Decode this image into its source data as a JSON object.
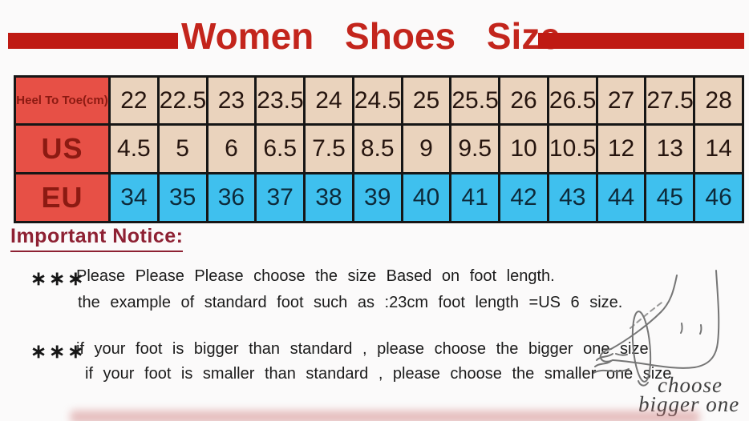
{
  "title": "Women Shoes Size",
  "chart_data": {
    "type": "table",
    "title": "Women Shoes Size",
    "series": [
      {
        "name": "Heel To Toe(cm)",
        "values": [
          "22",
          "22.5",
          "23",
          "23.5",
          "24",
          "24.5",
          "25",
          "25.5",
          "26",
          "26.5",
          "27",
          "27.5",
          "28"
        ]
      },
      {
        "name": "US",
        "values": [
          "4.5",
          "5",
          "6",
          "6.5",
          "7.5",
          "8.5",
          "9",
          "9.5",
          "10",
          "10.5",
          "12",
          "13",
          "14"
        ]
      },
      {
        "name": "EU",
        "values": [
          "34",
          "35",
          "36",
          "37",
          "38",
          "39",
          "40",
          "41",
          "42",
          "43",
          "44",
          "45",
          "46"
        ]
      }
    ]
  },
  "notice": {
    "heading": "Important Notice:",
    "marker": "∗∗∗",
    "bullet1_line1": "Please Please Please choose the size Based on foot length.",
    "bullet1_line2": "the example of standard foot such as :23cm foot length =US 6 size.",
    "bullet2_line1": "if your foot is bigger than standard , please choose the bigger one size",
    "bullet2_line2": "if your foot is smaller than standard , please choose the smaller one size"
  },
  "illustration": {
    "caption_line1": "choose",
    "caption_line2": "bigger one"
  },
  "colors": {
    "accent_red": "#c3251c",
    "bar_red": "#bf1a13",
    "header_cell_red": "#e75046",
    "header_text_maroon": "#8c1a12",
    "cm_us_cell_tan": "#ead3bd",
    "eu_cell_blue": "#3fc0ee",
    "table_border": "#161616",
    "notice_heading_maroon": "#8e2133",
    "body_text": "#1b1b1b",
    "sketch_gray": "#757575"
  }
}
